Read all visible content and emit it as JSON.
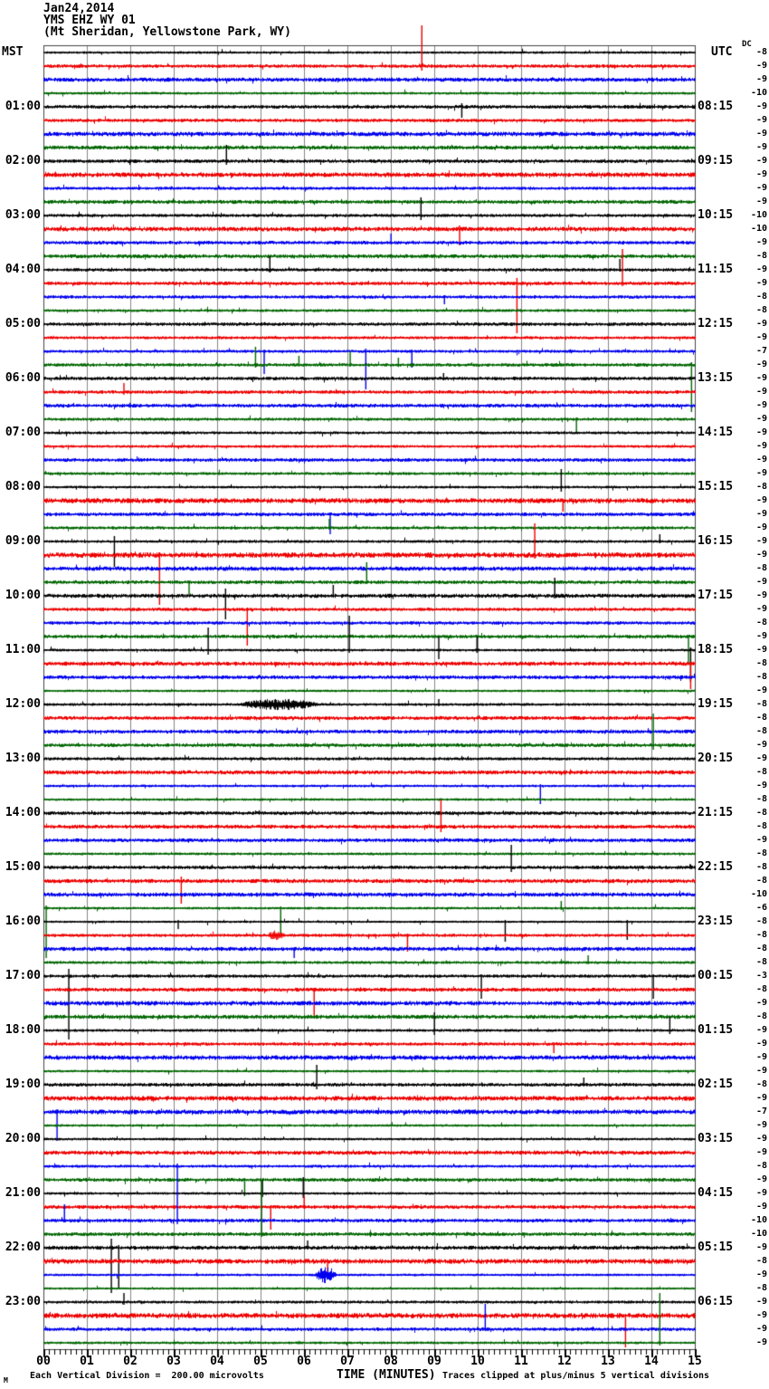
{
  "title": {
    "date": "Jan24,2014",
    "station": "YMS EHZ WY 01",
    "location": "(Mt Sheridan, Yellowstone Park, WY)"
  },
  "axes": {
    "left_header": "MST",
    "right_header": "UTC",
    "dc_header": "DC",
    "x_axis_title": "TIME (MINUTES)",
    "x_tick_labels": [
      "00",
      "01",
      "02",
      "03",
      "04",
      "05",
      "06",
      "07",
      "08",
      "09",
      "10",
      "11",
      "12",
      "13",
      "14",
      "15"
    ]
  },
  "footer": {
    "left_note": "Each Vertical Division =  200.00 microvolts",
    "right_note": "Traces clipped at plus/minus 5 vertical divisions",
    "corner_glyph": "M"
  },
  "chart_data": {
    "type": "line",
    "variant": "helicorder-seismogram",
    "n_rows": 96,
    "rows_per_hour": 4,
    "minutes_per_row": 15,
    "x_range_minutes": [
      0,
      15
    ],
    "trace_color_cycle": [
      "#000000",
      "#ee0000",
      "#0000ee",
      "#006600"
    ],
    "grid_color": "#858585",
    "border_color": "#444444",
    "noise_seed": 1327,
    "mst_labels": [
      "01:00",
      "02:00",
      "03:00",
      "04:00",
      "05:00",
      "06:00",
      "07:00",
      "08:00",
      "09:00",
      "10:00",
      "11:00",
      "12:00",
      "13:00",
      "14:00",
      "15:00",
      "16:00",
      "17:00",
      "18:00",
      "19:00",
      "20:00",
      "21:00",
      "22:00",
      "23:00"
    ],
    "utc_labels": [
      "08:15",
      "09:15",
      "10:15",
      "11:15",
      "12:15",
      "13:15",
      "14:15",
      "15:15",
      "16:15",
      "17:15",
      "18:15",
      "19:15",
      "20:15",
      "21:15",
      "22:15",
      "23:15",
      "00:15",
      "01:15",
      "02:15",
      "03:15",
      "04:15",
      "05:15",
      "06:15"
    ],
    "dc_offsets": [
      -8,
      -9,
      -9,
      -10,
      -9,
      -9,
      -9,
      -9,
      -9,
      -9,
      -9,
      -9,
      -10,
      -10,
      -9,
      -8,
      -9,
      -9,
      -8,
      -8,
      -9,
      -9,
      -7,
      -9,
      -9,
      -9,
      -9,
      -9,
      -9,
      -9,
      -9,
      -9,
      -8,
      -9,
      -9,
      -9,
      -9,
      -9,
      -8,
      -9,
      -9,
      -9,
      -8,
      -9,
      -9,
      -8,
      -8,
      -9,
      -8,
      -8,
      -8,
      -9,
      -9,
      -8,
      -9,
      -8,
      -8,
      -8,
      -9,
      -8,
      -8,
      -8,
      -10,
      -6,
      -8,
      -8,
      -8,
      -8,
      -3,
      -8,
      -9,
      -8,
      -9,
      -9,
      -9,
      -9,
      -8,
      -9,
      -7,
      -9,
      -9,
      -9,
      -8,
      -9,
      -9,
      -9,
      -10,
      -10,
      -9,
      -8,
      -9,
      -8,
      -9,
      -9,
      -9,
      -9
    ],
    "events": [
      {
        "r": 1,
        "m": 8.71,
        "u": 45,
        "d": 5
      },
      {
        "r": 4,
        "m": 9.63,
        "u": 4,
        "d": 12
      },
      {
        "r": 8,
        "m": 4.21,
        "u": 18,
        "d": 4
      },
      {
        "r": 12,
        "m": 8.69,
        "u": 20,
        "d": 5
      },
      {
        "r": 13,
        "m": 9.58,
        "u": 4,
        "d": 18
      },
      {
        "r": 14,
        "m": 8.0,
        "u": 10,
        "d": 2
      },
      {
        "r": 16,
        "m": 5.21,
        "u": 15,
        "d": 3
      },
      {
        "r": 16,
        "m": 13.27,
        "u": 12,
        "d": 2
      },
      {
        "r": 17,
        "m": 10.9,
        "u": 6,
        "d": 55
      },
      {
        "r": 17,
        "m": 13.33,
        "u": 38,
        "d": 3
      },
      {
        "r": 18,
        "m": 9.23,
        "u": 2,
        "d": 8
      },
      {
        "r": 22,
        "m": 5.08,
        "u": 2,
        "d": 25
      },
      {
        "r": 22,
        "m": 7.42,
        "u": 3,
        "d": 42
      },
      {
        "r": 22,
        "m": 8.48,
        "u": 2,
        "d": 18
      },
      {
        "r": 23,
        "m": 4.88,
        "u": 20,
        "d": 3
      },
      {
        "r": 23,
        "m": 5.88,
        "u": 10,
        "d": 2
      },
      {
        "r": 23,
        "m": 7.06,
        "u": 15,
        "d": 2
      },
      {
        "r": 23,
        "m": 8.17,
        "u": 8,
        "d": 2
      },
      {
        "r": 23,
        "m": 14.92,
        "u": 3,
        "d": 52
      },
      {
        "r": 24,
        "m": 9.21,
        "u": 6,
        "d": 2
      },
      {
        "r": 25,
        "m": 1.85,
        "u": 10,
        "d": 3
      },
      {
        "r": 27,
        "m": 12.27,
        "u": 2,
        "d": 15
      },
      {
        "r": 32,
        "m": 11.92,
        "u": 20,
        "d": 5
      },
      {
        "r": 33,
        "m": 11.96,
        "u": 2,
        "d": 12
      },
      {
        "r": 34,
        "m": 6.6,
        "u": 2,
        "d": 22
      },
      {
        "r": 35,
        "m": 6.58,
        "u": 10,
        "d": 2
      },
      {
        "r": 36,
        "m": 1.63,
        "u": 6,
        "d": 28
      },
      {
        "r": 36,
        "m": 14.19,
        "u": 8,
        "d": 2
      },
      {
        "r": 37,
        "m": 2.67,
        "u": 3,
        "d": 55
      },
      {
        "r": 37,
        "m": 11.31,
        "u": 35,
        "d": 4
      },
      {
        "r": 39,
        "m": 3.35,
        "u": 2,
        "d": 14
      },
      {
        "r": 39,
        "m": 7.44,
        "u": 22,
        "d": 2
      },
      {
        "r": 40,
        "m": 4.19,
        "u": 8,
        "d": 26
      },
      {
        "r": 40,
        "m": 6.67,
        "u": 12,
        "d": 2
      },
      {
        "r": 40,
        "m": 11.77,
        "u": 20,
        "d": 3
      },
      {
        "r": 41,
        "m": 4.69,
        "u": 2,
        "d": 40
      },
      {
        "r": 43,
        "m": 14.85,
        "u": 2,
        "d": 30
      },
      {
        "r": 44,
        "m": 3.79,
        "u": 25,
        "d": 5
      },
      {
        "r": 44,
        "m": 7.04,
        "u": 38,
        "d": 3
      },
      {
        "r": 44,
        "m": 9.1,
        "u": 15,
        "d": 10
      },
      {
        "r": 44,
        "m": 9.98,
        "u": 15,
        "d": 3
      },
      {
        "r": 44,
        "m": 14.9,
        "u": 3,
        "d": 35
      },
      {
        "r": 45,
        "m": 14.9,
        "u": 2,
        "d": 28
      },
      {
        "r": 48,
        "burst": [
          4.52,
          6.33
        ],
        "a": 3.5
      },
      {
        "r": 48,
        "m": 9.1,
        "u": 6,
        "d": 2
      },
      {
        "r": 51,
        "m": 14.04,
        "u": 35,
        "d": 5
      },
      {
        "r": 54,
        "m": 11.44,
        "u": 2,
        "d": 20
      },
      {
        "r": 57,
        "m": 9.15,
        "u": 30,
        "d": 6
      },
      {
        "r": 60,
        "m": 10.77,
        "u": 25,
        "d": 5
      },
      {
        "r": 61,
        "m": 3.17,
        "u": 5,
        "d": 25
      },
      {
        "r": 63,
        "m": 0.06,
        "u": 3,
        "d": 55
      },
      {
        "r": 63,
        "m": 5.46,
        "u": 2,
        "d": 28
      },
      {
        "r": 63,
        "m": 11.92,
        "u": 8,
        "d": 2
      },
      {
        "r": 64,
        "m": 3.1,
        "u": 2,
        "d": 8
      },
      {
        "r": 64,
        "m": 10.63,
        "u": 2,
        "d": 22
      },
      {
        "r": 64,
        "m": 13.44,
        "u": 2,
        "d": 20
      },
      {
        "r": 65,
        "burst": [
          5.15,
          5.55
        ],
        "a": 3
      },
      {
        "r": 65,
        "m": 8.38,
        "u": 2,
        "d": 18
      },
      {
        "r": 66,
        "m": 5.77,
        "u": 2,
        "d": 10
      },
      {
        "r": 67,
        "m": 12.54,
        "u": 8,
        "d": 2
      },
      {
        "r": 68,
        "m": 0.58,
        "u": 8,
        "d": 70
      },
      {
        "r": 68,
        "m": 10.08,
        "u": 2,
        "d": 25
      },
      {
        "r": 68,
        "m": 14.04,
        "u": 2,
        "d": 25
      },
      {
        "r": 69,
        "m": 6.23,
        "u": 2,
        "d": 30
      },
      {
        "r": 72,
        "m": 9.0,
        "u": 20,
        "d": 5
      },
      {
        "r": 72,
        "m": 14.42,
        "u": 15,
        "d": 4
      },
      {
        "r": 73,
        "m": 11.75,
        "u": 2,
        "d": 10
      },
      {
        "r": 76,
        "m": 6.29,
        "u": 22,
        "d": 5
      },
      {
        "r": 76,
        "m": 12.44,
        "u": 8,
        "d": 2
      },
      {
        "r": 78,
        "m": 0.31,
        "u": 3,
        "d": 32
      },
      {
        "r": 83,
        "m": 4.63,
        "u": 2,
        "d": 18
      },
      {
        "r": 84,
        "m": 5.04,
        "u": 15,
        "d": 4
      },
      {
        "r": 84,
        "m": 5.98,
        "u": 18,
        "d": 5
      },
      {
        "r": 85,
        "m": 5.23,
        "u": 2,
        "d": 25
      },
      {
        "r": 85,
        "m": 6.0,
        "u": 12,
        "d": 2
      },
      {
        "r": 86,
        "m": 0.48,
        "u": 18,
        "d": 2
      },
      {
        "r": 86,
        "m": 3.08,
        "u": 63,
        "d": 4
      },
      {
        "r": 87,
        "m": 5.02,
        "u": 60,
        "d": 3
      },
      {
        "r": 88,
        "m": 1.56,
        "u": 10,
        "d": 50
      },
      {
        "r": 88,
        "m": 1.73,
        "u": 3,
        "d": 45
      },
      {
        "r": 88,
        "m": 6.08,
        "u": 8,
        "d": 2
      },
      {
        "r": 89,
        "m": 6.54,
        "u": 2,
        "d": 16
      },
      {
        "r": 90,
        "burst": [
          6.25,
          6.75
        ],
        "a": 5
      },
      {
        "r": 92,
        "m": 1.85,
        "u": 10,
        "d": 3
      },
      {
        "r": 93,
        "m": 13.4,
        "u": 2,
        "d": 35
      },
      {
        "r": 94,
        "m": 10.17,
        "u": 28,
        "d": 2
      },
      {
        "r": 95,
        "m": 14.19,
        "u": 55,
        "d": 3
      }
    ]
  }
}
